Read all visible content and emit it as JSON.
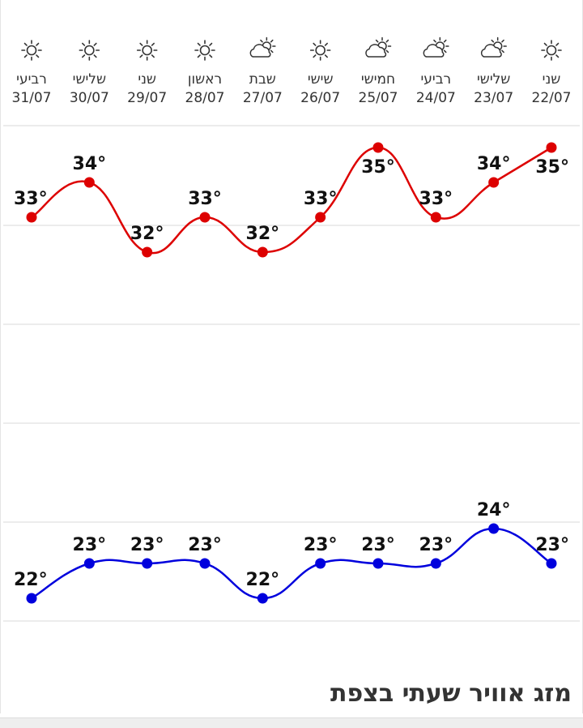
{
  "footer": {
    "title": "מזג אוויר שעתי בצפת"
  },
  "colors": {
    "high": "#dd0000",
    "low": "#0000dd",
    "grid": "#e6e6e6",
    "icon": "#333333"
  },
  "chart_data": {
    "type": "line",
    "columns": [
      {
        "day": "רביעי",
        "date": "31/07",
        "icon": "sun-icon"
      },
      {
        "day": "שלישי",
        "date": "30/07",
        "icon": "sun-icon"
      },
      {
        "day": "שני",
        "date": "29/07",
        "icon": "sun-icon"
      },
      {
        "day": "ראשון",
        "date": "28/07",
        "icon": "sun-icon"
      },
      {
        "day": "שבת",
        "date": "27/07",
        "icon": "partly-cloudy-icon"
      },
      {
        "day": "שישי",
        "date": "26/07",
        "icon": "sun-icon"
      },
      {
        "day": "חמישי",
        "date": "25/07",
        "icon": "partly-cloudy-icon"
      },
      {
        "day": "רביעי",
        "date": "24/07",
        "icon": "partly-cloudy-icon"
      },
      {
        "day": "שלישי",
        "date": "23/07",
        "icon": "partly-cloudy-icon"
      },
      {
        "day": "שני",
        "date": "22/07",
        "icon": "sun-icon"
      }
    ],
    "series": [
      {
        "values": [
          33,
          34,
          32,
          33,
          32,
          33,
          35,
          33,
          34,
          35
        ],
        "labels": [
          "33°",
          "34°",
          "32°",
          "33°",
          "32°",
          "33°",
          "35°",
          "33°",
          "34°",
          "35°"
        ]
      },
      {
        "values": [
          22,
          23,
          23,
          23,
          22,
          23,
          23,
          23,
          24,
          23
        ],
        "labels": [
          "22°",
          "23°",
          "23°",
          "23°",
          "22°",
          "23°",
          "23°",
          "23°",
          "24°",
          "23°"
        ]
      }
    ],
    "grid": true,
    "legend": "none"
  }
}
